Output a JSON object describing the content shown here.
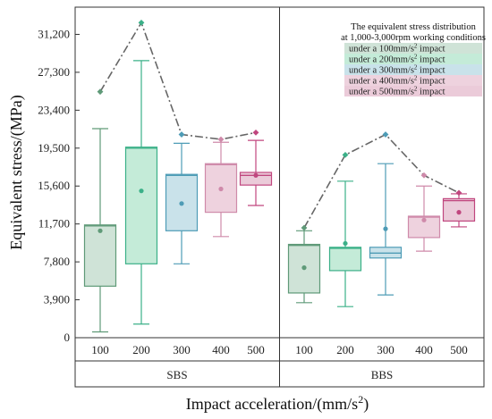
{
  "chart_data": {
    "type": "box",
    "title": "",
    "xlabel": "Impact acceleration/(mm/s",
    "xlabel_sup": "2",
    "xlabel_end": ")",
    "ylabel": "Equivalent stress/(MPa)",
    "ylim": [
      0,
      34000
    ],
    "y_ticks": [
      0,
      3900,
      7800,
      11700,
      15600,
      19500,
      23400,
      27300,
      31200
    ],
    "y_tick_labels": [
      "0",
      "3,900",
      "7,800",
      "11,700",
      "15,600",
      "19,500",
      "23,400",
      "27,300",
      "31,200"
    ],
    "grid": false,
    "legend": {
      "title_line1": "The equivalent stress distribution",
      "title_line2": "at 1,000-3,000rpm working conditions",
      "placement": "top-right",
      "entries": [
        {
          "text": "under a 100mm/s",
          "sup": "2",
          "end": " impact",
          "color": "#cfe3d7"
        },
        {
          "text": "under a 200mm/s",
          "sup": "2",
          "end": " impact",
          "color": "#c4ebd8"
        },
        {
          "text": "under a 300mm/s",
          "sup": "2",
          "end": " impact",
          "color": "#c9e2ea"
        },
        {
          "text": "under a 400mm/s",
          "sup": "2",
          "end": " impact",
          "color": "#eed2de"
        },
        {
          "text": "under a 500mm/s",
          "sup": "2",
          "end": " impact",
          "color": "#ebcbd9"
        }
      ]
    },
    "groups": [
      {
        "name": "SBS",
        "boxes": [
          {
            "category": "100",
            "min": 600,
            "q1": 5300,
            "median": 11500,
            "q3": 11600,
            "max": 21500,
            "mean": 11000,
            "outlier": 25300,
            "fill": "#cfe3d7",
            "stroke": "#5f9a78"
          },
          {
            "category": "200",
            "min": 1400,
            "q1": 7600,
            "median": 19500,
            "q3": 19600,
            "max": 28500,
            "mean": 15100,
            "outlier": 32400,
            "fill": "#c4ebd8",
            "stroke": "#3bb088"
          },
          {
            "category": "300",
            "min": 7600,
            "q1": 11000,
            "median": 16700,
            "q3": 16800,
            "max": 20000,
            "mean": 13800,
            "outlier": 20900,
            "fill": "#c9e2ea",
            "stroke": "#4e9cb6"
          },
          {
            "category": "400",
            "min": 10400,
            "q1": 12900,
            "median": 17800,
            "q3": 17900,
            "max": 20100,
            "mean": 15300,
            "outlier": 20400,
            "fill": "#eed2de",
            "stroke": "#cf8aaa"
          },
          {
            "category": "500",
            "min": 13600,
            "q1": 15700,
            "median": 16700,
            "q3": 17000,
            "max": 20300,
            "mean": 16700,
            "outlier": 21100,
            "fill": "#ebcbd9",
            "stroke": "#c0467e"
          }
        ]
      },
      {
        "name": "BBS",
        "boxes": [
          {
            "category": "100",
            "min": 3600,
            "q1": 4600,
            "median": 9500,
            "q3": 9600,
            "max": 11000,
            "mean": 7200,
            "outlier": 11300,
            "fill": "#cfe3d7",
            "stroke": "#5f9a78"
          },
          {
            "category": "200",
            "min": 3200,
            "q1": 6900,
            "median": 9200,
            "q3": 9300,
            "max": 16100,
            "mean": 9700,
            "outlier": 18800,
            "fill": "#c4ebd8",
            "stroke": "#3bb088"
          },
          {
            "category": "300",
            "min": 4400,
            "q1": 8200,
            "median": 8700,
            "q3": 9300,
            "max": 17900,
            "mean": 11200,
            "outlier": 20900,
            "fill": "#c9e2ea",
            "stroke": "#4e9cb6"
          },
          {
            "category": "400",
            "min": 8900,
            "q1": 10300,
            "median": 12400,
            "q3": 12500,
            "max": 15600,
            "mean": 12100,
            "outlier": 16700,
            "fill": "#eed2de",
            "stroke": "#cf8aaa"
          },
          {
            "category": "500",
            "min": 11400,
            "q1": 12000,
            "median": 14100,
            "q3": 14300,
            "max": 14800,
            "mean": 12900,
            "outlier": 14900,
            "fill": "#ebcbd9",
            "stroke": "#c0467e"
          }
        ]
      }
    ],
    "trend_line": {
      "style": "dash-dot",
      "color": "#666666",
      "through": "outlier"
    }
  }
}
